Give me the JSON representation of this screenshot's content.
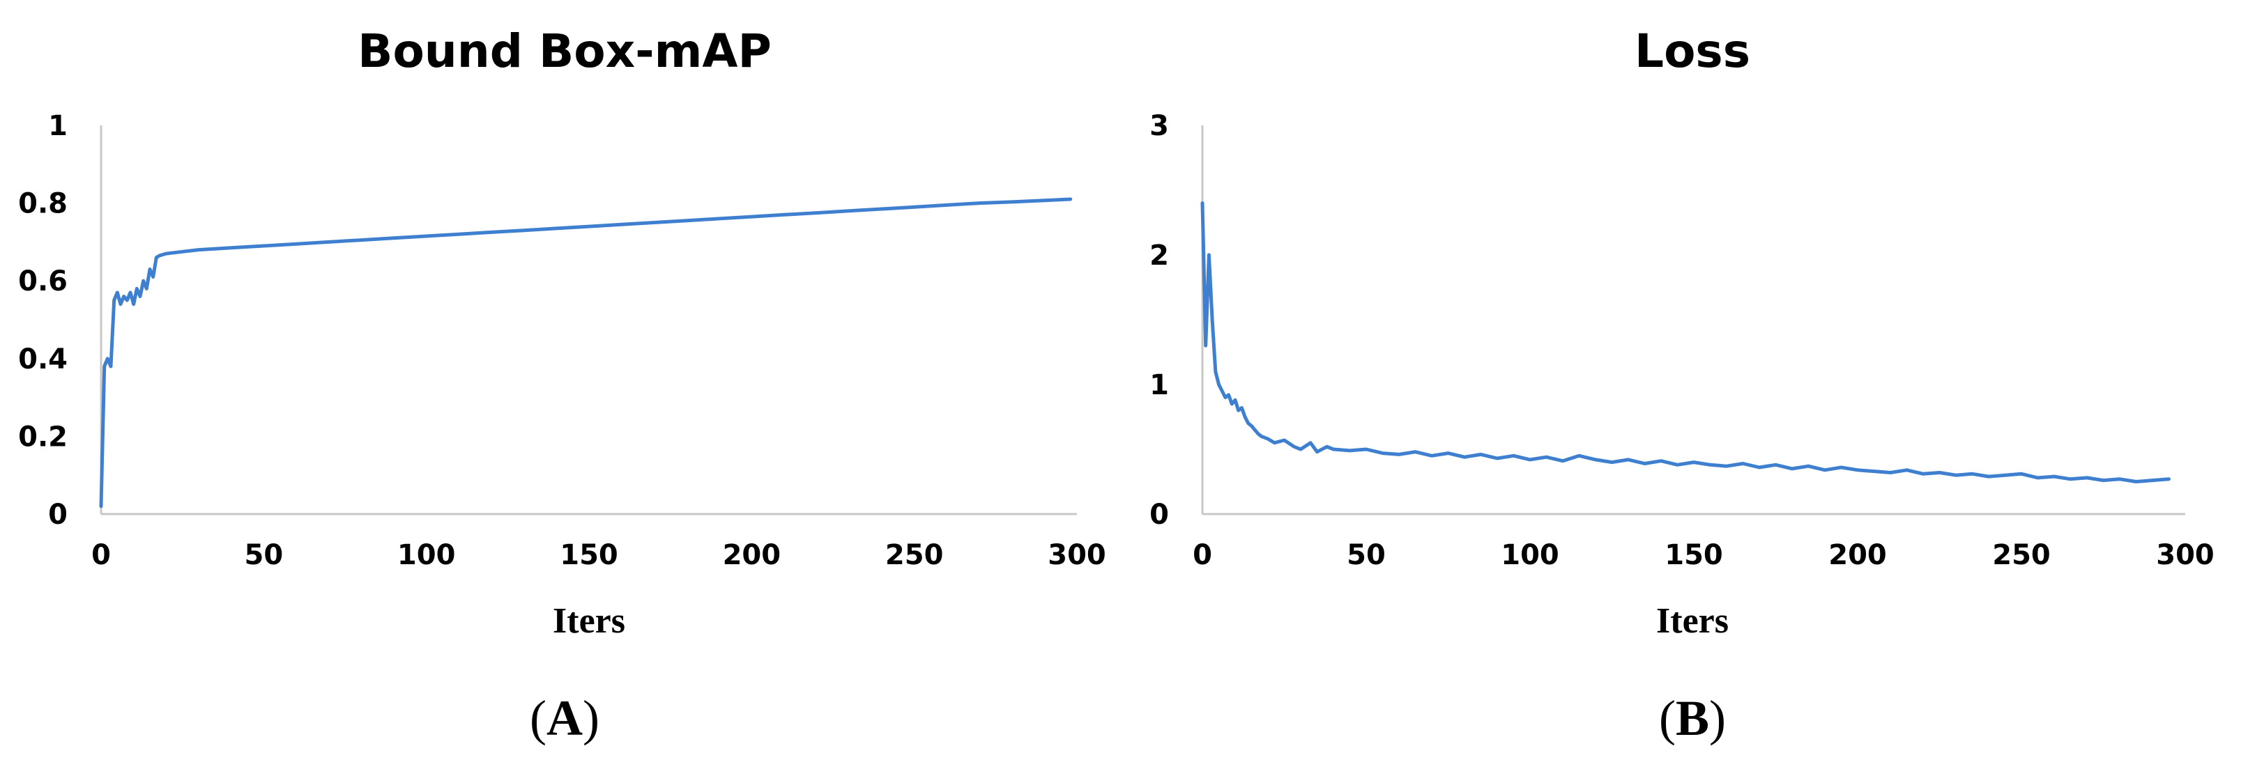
{
  "colors": {
    "series": "#3f7fcf"
  },
  "chart_data": [
    {
      "type": "line",
      "title": "Bound Box-mAP",
      "xlabel": "Iters",
      "ylabel": "",
      "panel_label": {
        "open": "(",
        "letter": "A",
        "close": ")"
      },
      "xlim": [
        0,
        300
      ],
      "ylim": [
        0,
        1
      ],
      "xticks": [
        0,
        50,
        100,
        150,
        200,
        250,
        300
      ],
      "yticks": [
        0,
        0.2,
        0.4,
        0.6,
        0.8,
        1
      ],
      "ytick_labels": [
        "0",
        "0.2",
        "0.4",
        "0.6",
        "0.8",
        "1"
      ],
      "grid": false,
      "series": [
        {
          "x": [
            0,
            1,
            2,
            3,
            4,
            5,
            6,
            7,
            8,
            9,
            10,
            11,
            12,
            13,
            14,
            15,
            16,
            17,
            18,
            20,
            25,
            30,
            40,
            50,
            60,
            70,
            80,
            90,
            100,
            110,
            120,
            130,
            140,
            150,
            160,
            170,
            180,
            190,
            200,
            210,
            220,
            230,
            240,
            250,
            260,
            270,
            280,
            290,
            298
          ],
          "y": [
            0.02,
            0.38,
            0.4,
            0.38,
            0.55,
            0.57,
            0.54,
            0.56,
            0.55,
            0.57,
            0.54,
            0.58,
            0.56,
            0.6,
            0.58,
            0.63,
            0.61,
            0.66,
            0.665,
            0.67,
            0.675,
            0.68,
            0.685,
            0.69,
            0.695,
            0.7,
            0.705,
            0.71,
            0.715,
            0.72,
            0.725,
            0.73,
            0.735,
            0.74,
            0.745,
            0.75,
            0.755,
            0.76,
            0.765,
            0.77,
            0.775,
            0.78,
            0.785,
            0.79,
            0.795,
            0.8,
            0.803,
            0.807,
            0.81
          ]
        }
      ]
    },
    {
      "type": "line",
      "title": "Loss",
      "xlabel": "Iters",
      "ylabel": "",
      "panel_label": {
        "open": "(",
        "letter": "B",
        "close": ")"
      },
      "xlim": [
        0,
        300
      ],
      "ylim": [
        0,
        3
      ],
      "xticks": [
        0,
        50,
        100,
        150,
        200,
        250,
        300
      ],
      "yticks": [
        0,
        1,
        2,
        3
      ],
      "ytick_labels": [
        "0",
        "1",
        "2",
        "3"
      ],
      "grid": false,
      "series": [
        {
          "x": [
            0,
            1,
            2,
            3,
            4,
            5,
            6,
            7,
            8,
            9,
            10,
            11,
            12,
            13,
            14,
            15,
            16,
            17,
            18,
            20,
            22,
            25,
            28,
            30,
            33,
            35,
            38,
            40,
            45,
            50,
            55,
            60,
            65,
            70,
            75,
            80,
            85,
            90,
            95,
            100,
            105,
            110,
            115,
            120,
            125,
            130,
            135,
            140,
            145,
            150,
            155,
            160,
            165,
            170,
            175,
            180,
            185,
            190,
            195,
            200,
            205,
            210,
            215,
            220,
            225,
            230,
            235,
            240,
            245,
            250,
            255,
            260,
            265,
            270,
            275,
            280,
            285,
            290,
            295
          ],
          "y": [
            2.4,
            1.3,
            2.0,
            1.5,
            1.1,
            1.0,
            0.95,
            0.9,
            0.92,
            0.85,
            0.88,
            0.8,
            0.82,
            0.75,
            0.7,
            0.68,
            0.65,
            0.62,
            0.6,
            0.58,
            0.55,
            0.57,
            0.52,
            0.5,
            0.55,
            0.48,
            0.52,
            0.5,
            0.49,
            0.5,
            0.47,
            0.46,
            0.48,
            0.45,
            0.47,
            0.44,
            0.46,
            0.43,
            0.45,
            0.42,
            0.44,
            0.41,
            0.45,
            0.42,
            0.4,
            0.42,
            0.39,
            0.41,
            0.38,
            0.4,
            0.38,
            0.37,
            0.39,
            0.36,
            0.38,
            0.35,
            0.37,
            0.34,
            0.36,
            0.34,
            0.33,
            0.32,
            0.34,
            0.31,
            0.32,
            0.3,
            0.31,
            0.29,
            0.3,
            0.31,
            0.28,
            0.29,
            0.27,
            0.28,
            0.26,
            0.27,
            0.25,
            0.26,
            0.27
          ]
        }
      ]
    }
  ]
}
